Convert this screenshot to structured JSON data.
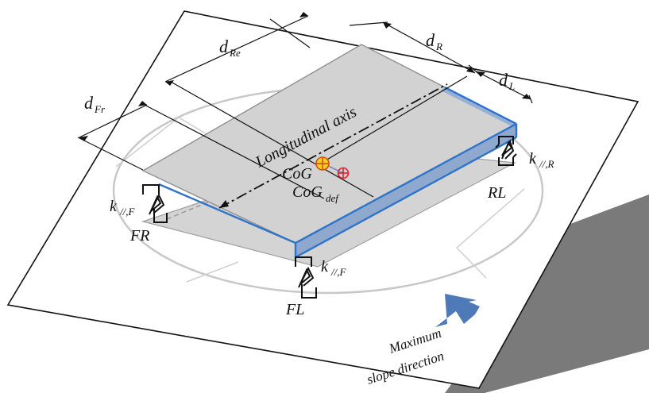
{
  "labels": {
    "d_re_main": "d",
    "d_re_sub": "Re",
    "d_r_main": "d",
    "d_r_sub": "R",
    "d_fr_main": "d",
    "d_fr_sub": "Fr",
    "d_l_main": "d",
    "d_l_sub": "L",
    "longitudinal_axis": "Longitudinal axis",
    "cog": "CoG",
    "cog_def_main": "CoG",
    "cog_def_sub": "def",
    "k_rear_main": "k",
    "k_rear_sub": "//,R",
    "k_front_left_main": "k",
    "k_front_left_sub": "//,F",
    "k_front_mid_main": "k",
    "k_front_mid_sub": "//,F",
    "rl": "RL",
    "fr": "FR",
    "fl": "FL",
    "slope_line1": "Maximum",
    "slope_line2": "slope direction"
  },
  "colors": {
    "plate": "#d2d2d2",
    "plate_edge": "#909090",
    "blue_face": "#8ea9cd",
    "blue_edge": "#2f74c9",
    "arrow": "#4f7ab8",
    "shadow": "#7a7a7a",
    "cog_fill": "#f5d020",
    "cog_def": "#e0202c"
  }
}
